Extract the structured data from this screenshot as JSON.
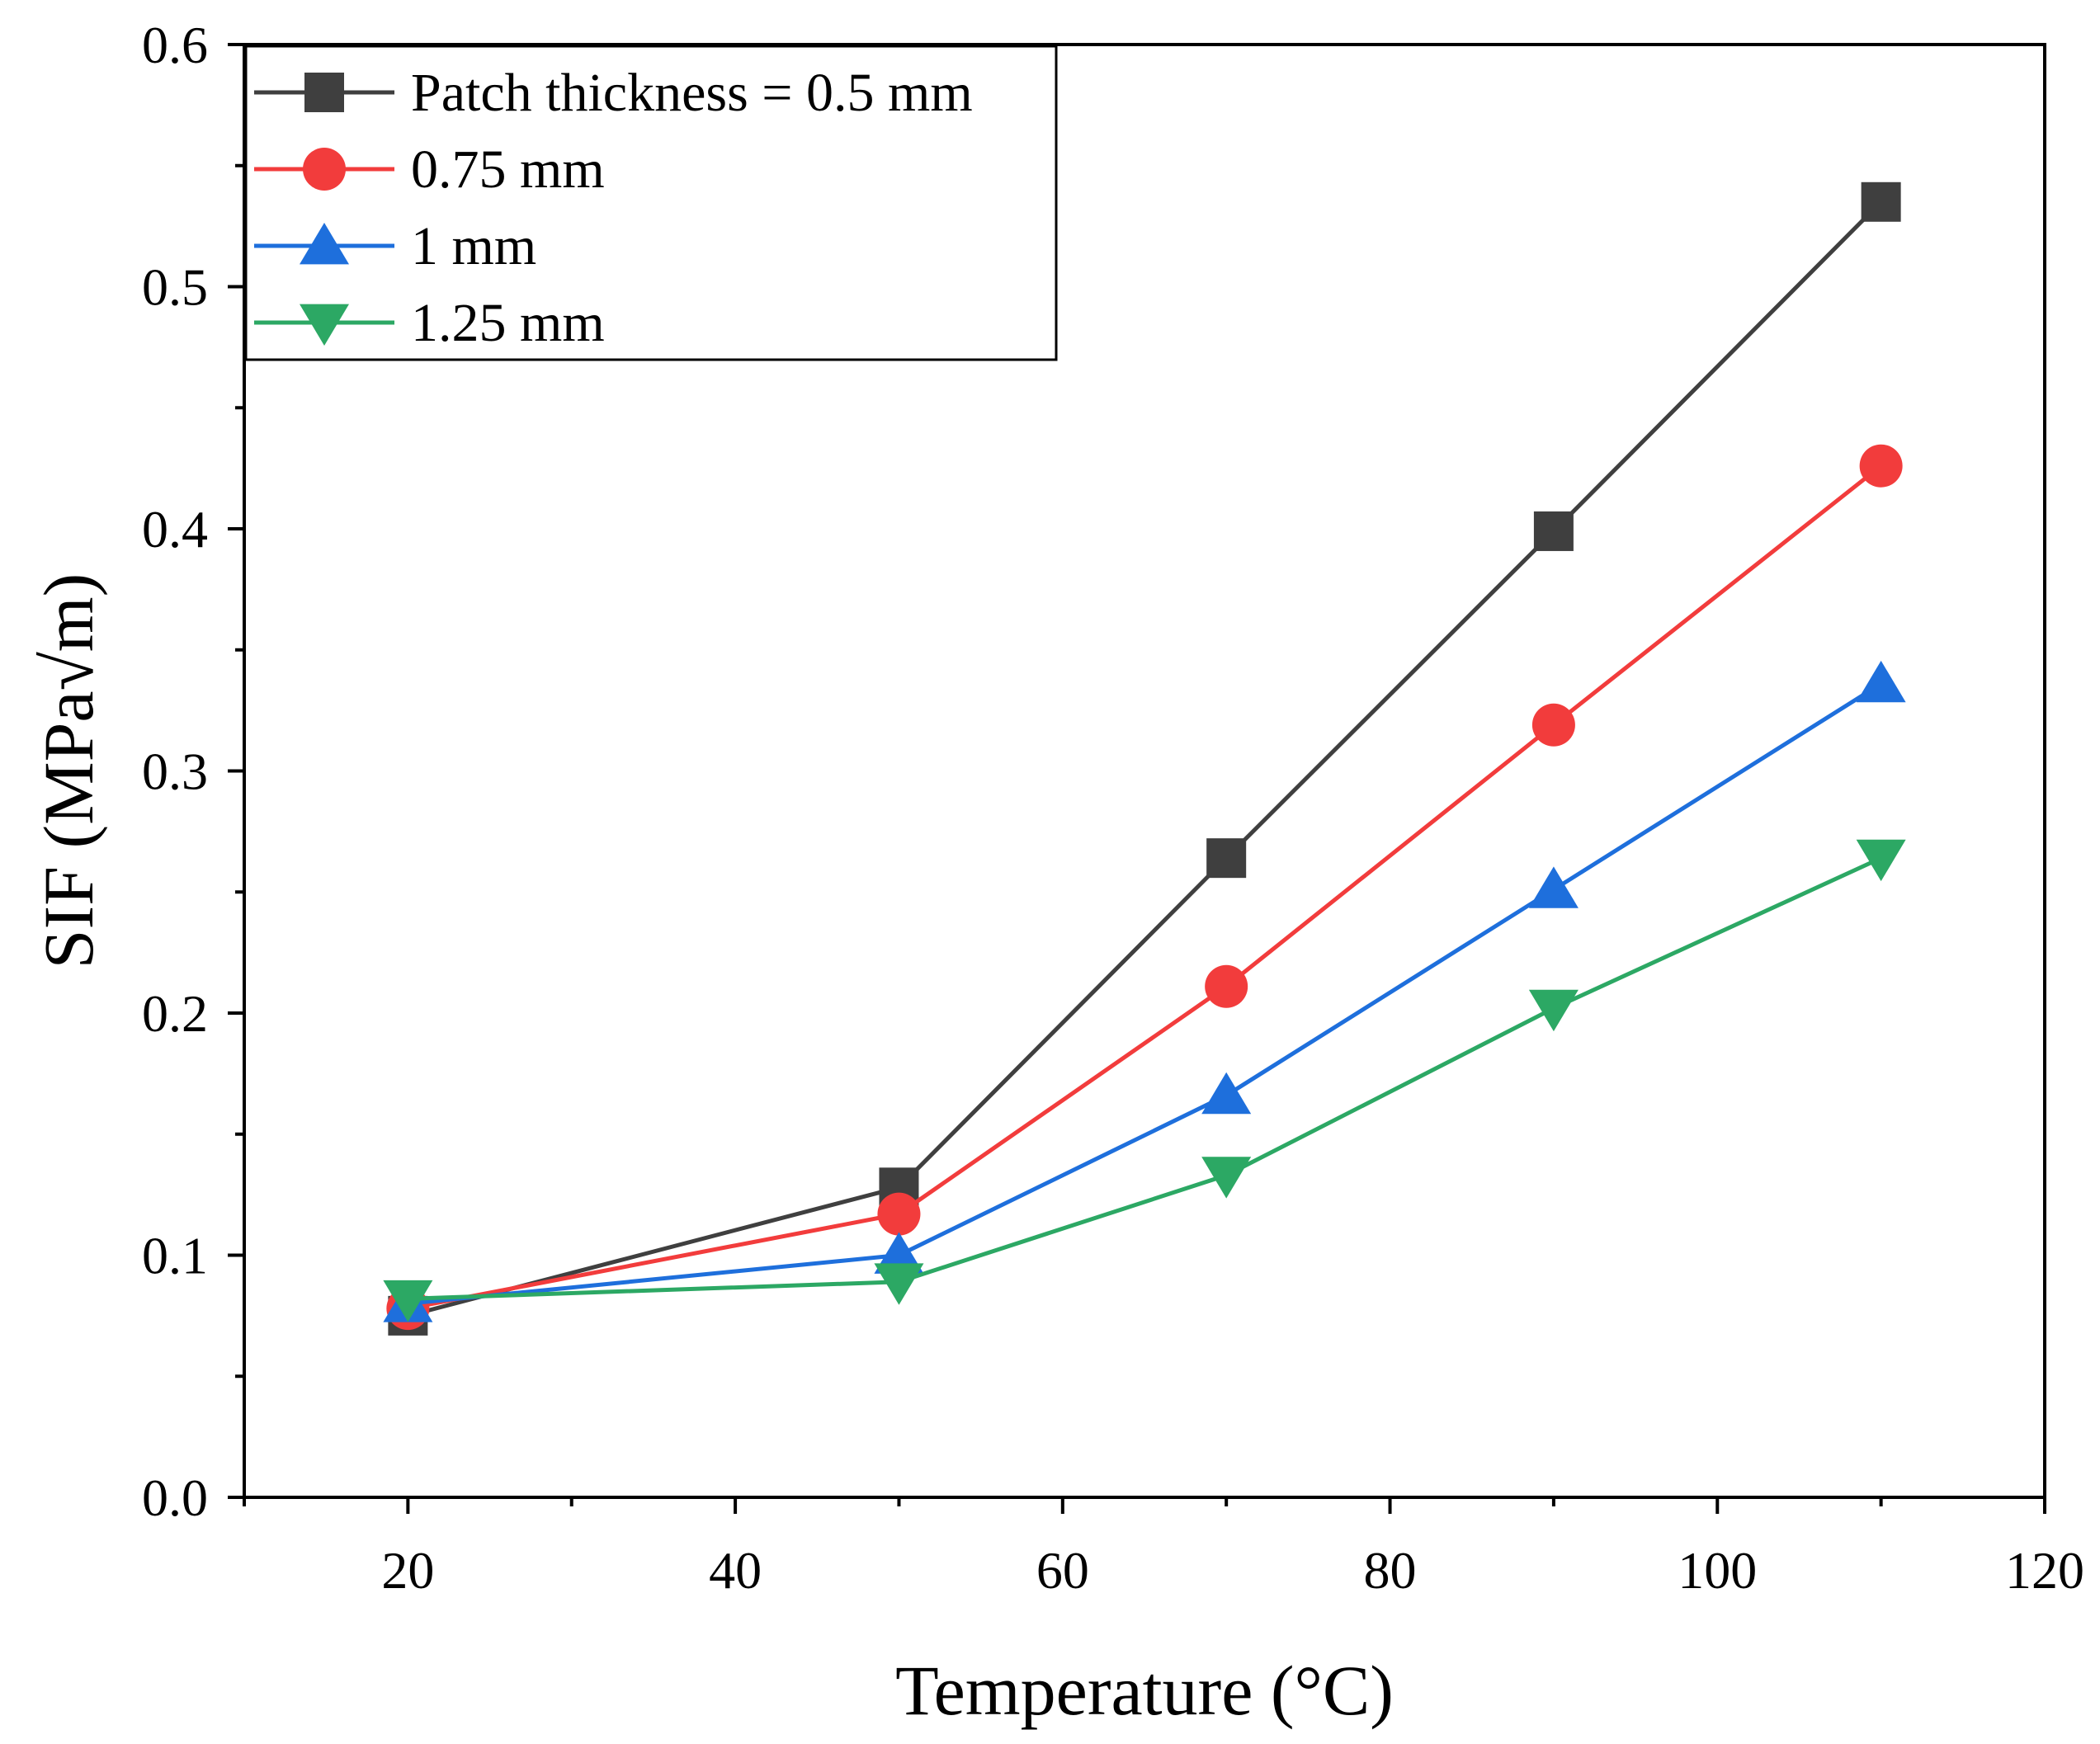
{
  "chart_data": {
    "type": "line",
    "title": "",
    "xlabel": "Temperature (°C)",
    "ylabel": "SIF (MPa√m)",
    "xlim": [
      10,
      120
    ],
    "ylim": [
      0.0,
      0.6
    ],
    "x_ticks": [
      20,
      40,
      60,
      80,
      100,
      120
    ],
    "x_tick_labels": [
      "20",
      "40",
      "60",
      "80",
      "100",
      "120"
    ],
    "y_ticks": [
      0.0,
      0.1,
      0.2,
      0.3,
      0.4,
      0.5,
      0.6
    ],
    "y_tick_labels": [
      "0.0",
      "0.1",
      "0.2",
      "0.3",
      "0.4",
      "0.5",
      "0.6"
    ],
    "grid": false,
    "legend_position": "top-left",
    "x": [
      20,
      50,
      70,
      90,
      110
    ],
    "series": [
      {
        "name": "Patch thickness = 0.5 mm",
        "color": "#3f3f3f",
        "marker": "square",
        "values": [
          0.075,
          0.128,
          0.264,
          0.399,
          0.535
        ]
      },
      {
        "name": "0.75 mm",
        "color": "#f23c3c",
        "marker": "circle",
        "values": [
          0.078,
          0.117,
          0.211,
          0.319,
          0.426
        ]
      },
      {
        "name": "1 mm",
        "color": "#1e6fdc",
        "marker": "triangle-up",
        "values": [
          0.08,
          0.1,
          0.166,
          0.251,
          0.336
        ]
      },
      {
        "name": "1.25 mm",
        "color": "#2ca864",
        "marker": "triangle-down",
        "values": [
          0.082,
          0.089,
          0.133,
          0.202,
          0.264
        ]
      }
    ]
  }
}
